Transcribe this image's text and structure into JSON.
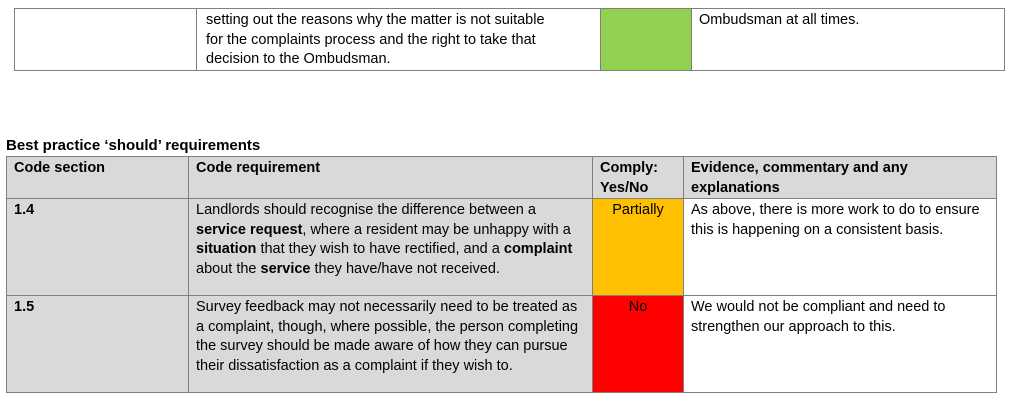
{
  "top_fragment": {
    "text_lines": [
      "setting out the reasons why the matter is not suitable",
      "for the complaints process and the right to take that",
      "decision to the Ombudsman."
    ],
    "compliance_color": "#92d050",
    "evidence": "Ombudsman at all times."
  },
  "heading": "Best practice ‘should’ requirements",
  "table": {
    "headers": {
      "code_section": "Code section",
      "code_requirement": "Code requirement",
      "comply_line1": "Comply:",
      "comply_line2": "Yes/No",
      "evidence_line1": "Evidence, commentary and any",
      "evidence_line2": "explanations"
    },
    "rows": [
      {
        "section": "1.4",
        "requirement": {
          "t1": "Landlords should recognise the difference between a ",
          "b1": "service request",
          "t2": ", where a resident may be unhappy with a ",
          "b2": "situation",
          "t3": " that they wish to have rectified, and a ",
          "b3": "complaint",
          "t4": " about the ",
          "b4": "service",
          "t5": " they have/have not received."
        },
        "comply": "Partially",
        "comply_color": "#ffc000",
        "evidence": "As above, there is more work to do to ensure this is happening on a consistent basis."
      },
      {
        "section": "1.5",
        "requirement": "Survey feedback may not necessarily need to be treated as a complaint, though, where possible, the person completing the survey should be made aware of how they can pursue their dissatisfaction as a complaint if they wish to.",
        "comply": "No",
        "comply_color": "#ff0000",
        "evidence": "We would not be compliant and need to strengthen our approach to this."
      }
    ]
  }
}
